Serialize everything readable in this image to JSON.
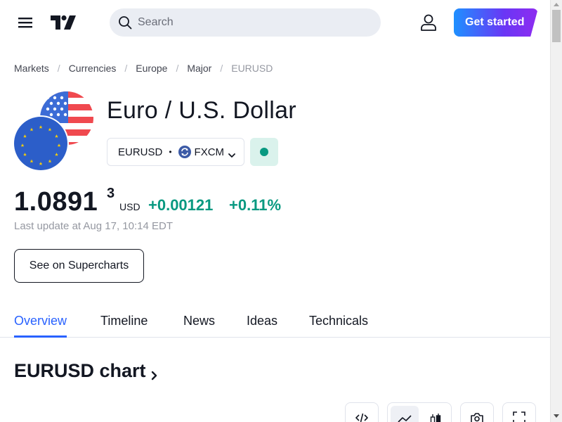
{
  "header": {
    "menu_icon": "hamburger-menu-icon",
    "logo_icon": "tradingview-logo-icon",
    "search_placeholder": "Search",
    "user_icon": "user-icon",
    "get_started_label": "Get started"
  },
  "breadcrumb": {
    "items": [
      "Markets",
      "Currencies",
      "Europe",
      "Major"
    ],
    "current": "EURUSD",
    "separator": "/"
  },
  "symbol": {
    "title": "Euro / U.S. Dollar",
    "ticker": "EURUSD",
    "exchange": "FXCM",
    "market_status_color": "#089981"
  },
  "price": {
    "main": "1.0891",
    "superscript": "3",
    "currency": "USD",
    "change_abs": "+0.00121",
    "change_pct": "+0.11%",
    "change_color": "#089981",
    "last_update": "Last update at Aug 17, 10:14 EDT"
  },
  "supercharts_button": "See on Supercharts",
  "tabs": [
    {
      "label": "Overview",
      "active": true
    },
    {
      "label": "Timeline",
      "active": false
    },
    {
      "label": "News",
      "active": false
    },
    {
      "label": "Ideas",
      "active": false
    },
    {
      "label": "Technicals",
      "active": false
    }
  ],
  "chart_section": {
    "heading": "EURUSD chart"
  },
  "toolbar": {
    "icons": [
      "embed-code-icon",
      "area-chart-icon",
      "candlestick-chart-icon",
      "camera-icon",
      "fullscreen-icon"
    ]
  },
  "colors": {
    "accent": "#2962ff",
    "positive": "#089981"
  }
}
